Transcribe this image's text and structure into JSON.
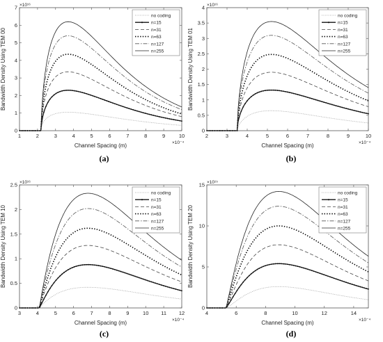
{
  "legend_labels": [
    "no coding",
    "n=15",
    "n=31",
    "n=63",
    "n=127",
    "n=255"
  ],
  "chart_data": [
    {
      "type": "line",
      "caption": "(a)",
      "xlabel": "Channel Spacing (m)",
      "ylabel": "Bandwidth Density Using TEM 00",
      "x_multiplier": "×10⁻⁴",
      "y_multiplier": "×10¹⁶",
      "xlim": [
        1,
        10
      ],
      "ylim": [
        0,
        7
      ],
      "xticks": [
        1,
        2,
        3,
        4,
        5,
        6,
        7,
        8,
        9,
        10
      ],
      "yticks": [
        0,
        1,
        2,
        3,
        4,
        5,
        6,
        7
      ],
      "legend": "top-right",
      "grid": false,
      "curve_shape": {
        "threshold_x": 2.2,
        "peak_x": 3.7
      },
      "series": [
        {
          "name": "no coding",
          "peak": 1.05,
          "end": 0.3
        },
        {
          "name": "n=15",
          "peak": 2.3,
          "end": 0.55
        },
        {
          "name": "n=31",
          "peak": 3.35,
          "end": 0.8
        },
        {
          "name": "n=63",
          "peak": 4.35,
          "end": 0.95
        },
        {
          "name": "n=127",
          "peak": 5.4,
          "end": 1.2
        },
        {
          "name": "n=255",
          "peak": 6.2,
          "end": 1.35
        }
      ]
    },
    {
      "type": "line",
      "caption": "(b)",
      "xlabel": "Channel Spacing (m)",
      "ylabel": "Bandwidth Density Using TEM 01",
      "x_multiplier": "×10⁻⁴",
      "y_multiplier": "×10¹⁶",
      "xlim": [
        2,
        10
      ],
      "ylim": [
        0,
        4
      ],
      "xticks": [
        2,
        3,
        4,
        5,
        6,
        7,
        8,
        9,
        10
      ],
      "yticks": [
        0,
        0.5,
        1,
        1.5,
        2,
        2.5,
        3,
        3.5,
        4
      ],
      "legend": "top-right",
      "grid": false,
      "curve_shape": {
        "threshold_x": 3.5,
        "peak_x": 5.2
      },
      "series": [
        {
          "name": "no coding",
          "peak": 0.65,
          "end": 0.25
        },
        {
          "name": "n=15",
          "peak": 1.32,
          "end": 0.55
        },
        {
          "name": "n=31",
          "peak": 1.9,
          "end": 0.78
        },
        {
          "name": "n=63",
          "peak": 2.48,
          "end": 0.97
        },
        {
          "name": "n=127",
          "peak": 3.1,
          "end": 1.22
        },
        {
          "name": "n=255",
          "peak": 3.55,
          "end": 1.4
        }
      ]
    },
    {
      "type": "line",
      "caption": "(c)",
      "xlabel": "Channel Spacing (m)",
      "ylabel": "Bandwidth Density Using TEM 10",
      "x_multiplier": "×10⁻⁴",
      "y_multiplier": "×10¹⁶",
      "xlim": [
        3,
        12
      ],
      "ylim": [
        0,
        2.5
      ],
      "xticks": [
        3,
        4,
        5,
        6,
        7,
        8,
        9,
        10,
        11,
        12
      ],
      "yticks": [
        0,
        0.5,
        1,
        1.5,
        2,
        2.5
      ],
      "legend": "top-right",
      "grid": false,
      "curve_shape": {
        "threshold_x": 4.1,
        "peak_x": 6.8
      },
      "series": [
        {
          "name": "no coding",
          "peak": 0.42,
          "end": 0.18
        },
        {
          "name": "n=15",
          "peak": 0.88,
          "end": 0.35
        },
        {
          "name": "n=31",
          "peak": 1.27,
          "end": 0.53
        },
        {
          "name": "n=63",
          "peak": 1.62,
          "end": 0.67
        },
        {
          "name": "n=127",
          "peak": 2.02,
          "end": 0.83
        },
        {
          "name": "n=255",
          "peak": 2.33,
          "end": 0.97
        }
      ]
    },
    {
      "type": "line",
      "caption": "(d)",
      "xlabel": "Channel Spacing (m)",
      "ylabel": "Bandwidth Density Using TEM 20",
      "x_multiplier": "×10⁻⁴",
      "y_multiplier": "×10¹⁵",
      "xlim": [
        4,
        15
      ],
      "ylim": [
        0,
        15
      ],
      "xticks": [
        4,
        6,
        8,
        10,
        12,
        14
      ],
      "yticks": [
        0,
        5,
        10,
        15
      ],
      "legend": "top-right",
      "grid": false,
      "curve_shape": {
        "threshold_x": 5.3,
        "peak_x": 8.9
      },
      "series": [
        {
          "name": "no coding",
          "peak": 2.6,
          "end": 1.0
        },
        {
          "name": "n=15",
          "peak": 5.4,
          "end": 2.3
        },
        {
          "name": "n=31",
          "peak": 7.7,
          "end": 3.3
        },
        {
          "name": "n=63",
          "peak": 10.0,
          "end": 4.4
        },
        {
          "name": "n=127",
          "peak": 12.4,
          "end": 5.5
        },
        {
          "name": "n=255",
          "peak": 14.2,
          "end": 6.3
        }
      ]
    }
  ]
}
